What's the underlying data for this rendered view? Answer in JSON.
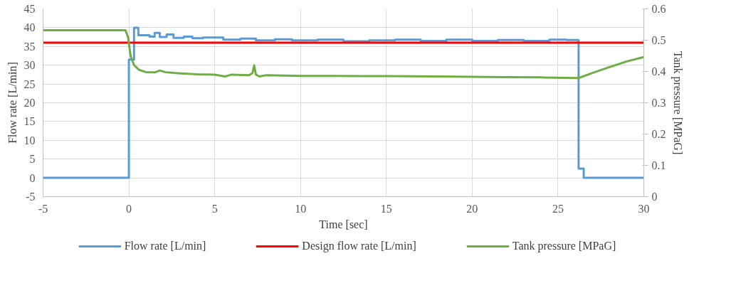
{
  "chart_data": {
    "type": "line",
    "xlabel": "Time [sec]",
    "ylabel": "Flow rate [L/min]",
    "y2label": "Tank pressure [MPaG]",
    "xlim": [
      -5,
      30
    ],
    "xticks": [
      -5,
      0,
      5,
      10,
      15,
      20,
      25,
      30
    ],
    "ylim": [
      -5,
      45
    ],
    "yticks": [
      -5,
      0,
      5,
      10,
      15,
      20,
      25,
      30,
      35,
      40,
      45
    ],
    "y2lim": [
      0,
      0.6
    ],
    "y2ticks": [
      0,
      0.1,
      0.2,
      0.3,
      0.4,
      0.5,
      0.6
    ],
    "grid": true,
    "legend": "bottom",
    "line_style": "solid",
    "marker": "none",
    "series": [
      {
        "name": "Flow rate [L/min]",
        "color": "#5b9bd5",
        "x": [
          -5,
          0,
          0,
          0.3,
          0.3,
          0.55,
          0.55,
          1.2,
          1.2,
          1.5,
          1.5,
          1.8,
          1.8,
          2.2,
          2.2,
          2.6,
          2.6,
          3.2,
          3.2,
          3.7,
          3.7,
          4.3,
          4.3,
          5.5,
          5.5,
          6.5,
          6.5,
          7.4,
          7.4,
          8.5,
          8.5,
          9.5,
          9.5,
          11,
          11,
          12.5,
          12.5,
          14,
          14,
          15.5,
          15.5,
          17,
          17,
          18.5,
          18.5,
          20,
          20,
          21.5,
          21.5,
          23,
          23,
          24.5,
          24.5,
          25.5,
          25.5,
          26.2,
          26.2,
          26.5,
          26.5,
          30
        ],
        "values": [
          0,
          0,
          31.5,
          31.5,
          40,
          40,
          38,
          38,
          37.6,
          37.6,
          38.6,
          38.6,
          37.5,
          37.5,
          38.2,
          38.2,
          37.3,
          37.3,
          37.6,
          37.6,
          37.2,
          37.2,
          37.4,
          37.4,
          36.8,
          36.8,
          37.1,
          37.1,
          36.6,
          36.6,
          36.9,
          36.9,
          36.6,
          36.6,
          36.8,
          36.8,
          36.4,
          36.4,
          36.6,
          36.6,
          36.8,
          36.8,
          36.5,
          36.5,
          36.8,
          36.8,
          36.5,
          36.5,
          36.7,
          36.7,
          36.5,
          36.5,
          36.8,
          36.8,
          36.7,
          36.7,
          2.5,
          2.5,
          0,
          0
        ]
      },
      {
        "name": "Design flow rate [L/min]",
        "color": "#ff0000",
        "x": [
          -5,
          30
        ],
        "values": [
          36,
          36
        ]
      },
      {
        "name": "Tank pressure [MPaG]",
        "color": "#70ad47",
        "axis": "y2",
        "x": [
          -5,
          -0.2,
          -0.05,
          0.1,
          0.3,
          0.6,
          1,
          1.5,
          1.8,
          2.1,
          2.5,
          3,
          4,
          5,
          5.6,
          6,
          7,
          7.2,
          7.3,
          7.4,
          7.6,
          8,
          9,
          10,
          12,
          15,
          18,
          20,
          22,
          24,
          26.2,
          27,
          28,
          29,
          30
        ],
        "values": [
          0.532,
          0.532,
          0.51,
          0.45,
          0.42,
          0.405,
          0.398,
          0.397,
          0.403,
          0.398,
          0.396,
          0.394,
          0.391,
          0.39,
          0.384,
          0.39,
          0.388,
          0.395,
          0.42,
          0.39,
          0.384,
          0.388,
          0.387,
          0.386,
          0.386,
          0.385,
          0.384,
          0.383,
          0.382,
          0.381,
          0.379,
          0.395,
          0.414,
          0.432,
          0.446
        ]
      }
    ]
  }
}
